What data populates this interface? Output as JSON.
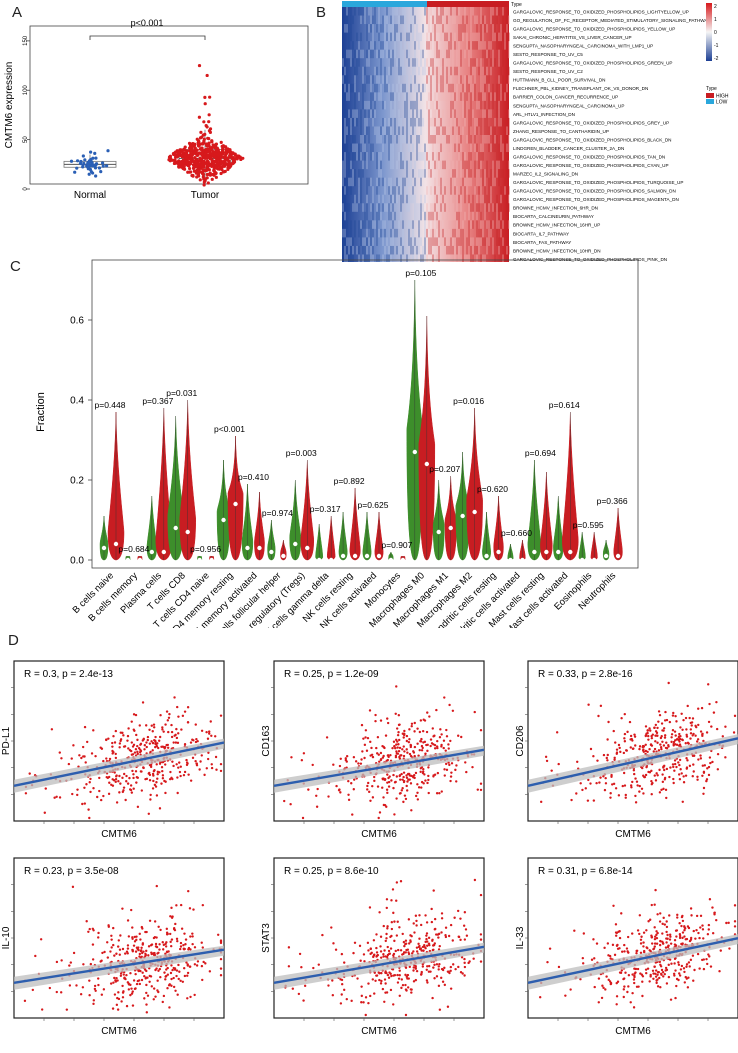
{
  "panels": {
    "a": "A",
    "b": "B",
    "c": "C",
    "d": "D"
  },
  "colors": {
    "normal": "#2a5fb5",
    "tumor": "#d7191c",
    "green": "#3d8e2b",
    "red": "#c81d22",
    "line": "#2d5eae",
    "ci": "#bdbdbd",
    "high": "#c81d22",
    "low": "#2aa7dc"
  },
  "panelA": {
    "ylabel": "CMTM6 expression",
    "yticks": [
      "0",
      "50",
      "100",
      "150"
    ],
    "yrange": [
      0,
      160
    ],
    "groups": [
      "Normal",
      "Tumor"
    ],
    "pvalue": "p<0.001",
    "stats": [
      {
        "group": "Normal",
        "q1": 22,
        "median": 25,
        "q3": 28,
        "min": 18,
        "max": 35
      },
      {
        "group": "Tumor",
        "q1": 25,
        "median": 31,
        "q3": 40,
        "min": 5,
        "max": 60,
        "outlier_max": 125
      }
    ]
  },
  "panelB": {
    "type_label": "Type",
    "legend_title": "Type",
    "legend_items": [
      "HIGH",
      "LOW"
    ],
    "scale_ticks": [
      "2",
      "1",
      "0",
      "-1",
      "-2"
    ],
    "genesets": [
      "GARGALOVIC_RESPONSE_TO_OXIDIZED_PHOSPHOLIPIDS_LIGHTYELLOW_UP",
      "GO_REGULATION_OF_FC_RECEPTOR_MEDIATED_STIMULATORY_SIGNALING_PATHWAY",
      "GARGALOVIC_RESPONSE_TO_OXIDIZED_PHOSPHOLIPIDS_YELLOW_UP",
      "SAKAI_CHRONIC_HEPATITIS_VS_LIVER_CANCER_UP",
      "SENGUPTA_NASOPHARYNGEAL_CARCINOMA_WITH_LMP1_UP",
      "SESTO_RESPONSE_TO_UV_C5",
      "GARGALOVIC_RESPONSE_TO_OXIDIZED_PHOSPHOLIPIDS_GREEN_UP",
      "SESTO_RESPONSE_TO_UV_C2",
      "HUTTMANN_B_CLL_POOR_SURVIVAL_DN",
      "FLECHNER_PBL_KIDNEY_TRANSPLANT_OK_VS_DONOR_DN",
      "BARRIER_COLON_CANCER_RECURRENCE_UP",
      "SENGUPTA_NASOPHARYNGEAL_CARCINOMA_UP",
      "ARL_HTLV1_INFECTION_DN",
      "GARGALOVIC_RESPONSE_TO_OXIDIZED_PHOSPHOLIPIDS_GREY_UP",
      "ZHANG_RESPONSE_TO_CANTHARIDIN_UP",
      "GARGALOVIC_RESPONSE_TO_OXIDIZED_PHOSPHOLIPIDS_BLACK_DN",
      "LINDGREN_BLADDER_CANCER_CLUSTER_2A_DN",
      "GARGALOVIC_RESPONSE_TO_OXIDIZED_PHOSPHOLIPIDS_TAN_DN",
      "GARGALOVIC_RESPONSE_TO_OXIDIZED_PHOSPHOLIPIDS_CYAN_UP",
      "MARZEC_IL2_SIGNALING_DN",
      "GARGALOVIC_RESPONSE_TO_OXIDIZED_PHOSPHOLIPIDS_TURQUOISE_UP",
      "GARGALOVIC_RESPONSE_TO_OXIDIZED_PHOSPHOLIPIDS_SALMON_DN",
      "GARGALOVIC_RESPONSE_TO_OXIDIZED_PHOSPHOLIPIDS_MAGENTA_DN",
      "BROWNE_HCMV_INFECTION_6HR_DN",
      "BIOCARTA_CALCINEURIN_PATHWAY",
      "BROWNE_HCMV_INFECTION_16HR_UP",
      "BIOCARTA_IL7_PATHWAY",
      "BIOCARTA_FAS_PATHWAY",
      "BROWNE_HCMV_INFECTION_10HR_DN",
      "GARGALOVIC_RESPONSE_TO_OXIDIZED_PHOSPHOLIPIDS_PINK_DN"
    ]
  },
  "chart_data": [
    {
      "type": "violin",
      "panel": "C",
      "ylabel": "Fraction",
      "ylim": [
        0,
        0.75
      ],
      "yticks": [
        "0.0",
        "0.2",
        "0.4",
        "0.6"
      ],
      "categories": [
        "B cells naive",
        "B cells memory",
        "Plasma cells",
        "T cells CD8",
        "T cells CD4 naive",
        "T cells CD4 memory resting",
        "T cells CD4 memory activated",
        "T cells follicular helper",
        "T cells regulatory (Tregs)",
        "T cells gamma delta",
        "NK cells resting",
        "NK cells activated",
        "Monocytes",
        "Macrophages M0",
        "Macrophages M1",
        "Macrophages M2",
        "Dendritic cells resting",
        "Dendritic cells activated",
        "Mast cells resting",
        "Mast cells activated",
        "Eosinophils",
        "Neutrophils"
      ],
      "pvalues": [
        "p=0.448",
        "p=0.684",
        "p=0.367",
        "p=0.031",
        "p=0.956",
        "p<0.001",
        "p=0.410",
        "p=0.974",
        "p=0.003",
        "p=0.317",
        "p=0.892",
        "p=0.625",
        "p=0.907",
        "p=0.105",
        "p=0.207",
        "p=0.016",
        "p=0.620",
        "p=0.660",
        "p=0.694",
        "p=0.614",
        "p=0.595",
        "p=0.366"
      ],
      "series": [
        {
          "name": "Low",
          "max": [
            0.11,
            0.01,
            0.16,
            0.36,
            0.01,
            0.25,
            0.19,
            0.1,
            0.2,
            0.09,
            0.12,
            0.12,
            0.02,
            0.7,
            0.2,
            0.27,
            0.12,
            0.04,
            0.25,
            0.16,
            0.07,
            0.05
          ],
          "median": [
            0.03,
            0.0,
            0.02,
            0.08,
            0.0,
            0.1,
            0.03,
            0.02,
            0.04,
            0.0,
            0.01,
            0.01,
            0.0,
            0.27,
            0.07,
            0.11,
            0.01,
            0.0,
            0.02,
            0.02,
            0.0,
            0.01
          ]
        },
        {
          "name": "High",
          "max": [
            0.37,
            0.01,
            0.38,
            0.4,
            0.01,
            0.31,
            0.17,
            0.05,
            0.25,
            0.11,
            0.18,
            0.12,
            0.01,
            0.61,
            0.21,
            0.38,
            0.16,
            0.05,
            0.22,
            0.37,
            0.07,
            0.13
          ],
          "median": [
            0.04,
            0.0,
            0.02,
            0.07,
            0.0,
            0.14,
            0.03,
            0.01,
            0.03,
            0.0,
            0.01,
            0.01,
            0.0,
            0.24,
            0.08,
            0.12,
            0.02,
            0.0,
            0.02,
            0.02,
            0.0,
            0.01
          ]
        }
      ]
    },
    {
      "type": "scatter",
      "panel": "D",
      "xlabel": "CMTM6",
      "ylabel": "PD-L1",
      "stat": "R = 0.3, p = 2.4e-13",
      "slope": 0.3
    },
    {
      "type": "scatter",
      "panel": "D",
      "xlabel": "CMTM6",
      "ylabel": "CD163",
      "stat": "R = 0.25, p = 1.2e-09",
      "slope": 0.25
    },
    {
      "type": "scatter",
      "panel": "D",
      "xlabel": "CMTM6",
      "ylabel": "CD206",
      "stat": "R = 0.33, p = 2.8e-16",
      "slope": 0.33
    },
    {
      "type": "scatter",
      "panel": "D",
      "xlabel": "CMTM6",
      "ylabel": "IL-10",
      "stat": "R = 0.23, p = 3.5e-08",
      "slope": 0.23
    },
    {
      "type": "scatter",
      "panel": "D",
      "xlabel": "CMTM6",
      "ylabel": "STAT3",
      "stat": "R = 0.25, p = 8.6e-10",
      "slope": 0.25
    },
    {
      "type": "scatter",
      "panel": "D",
      "xlabel": "CMTM6",
      "ylabel": "IL-33",
      "stat": "R = 0.31, p = 6.8e-14",
      "slope": 0.31
    }
  ]
}
